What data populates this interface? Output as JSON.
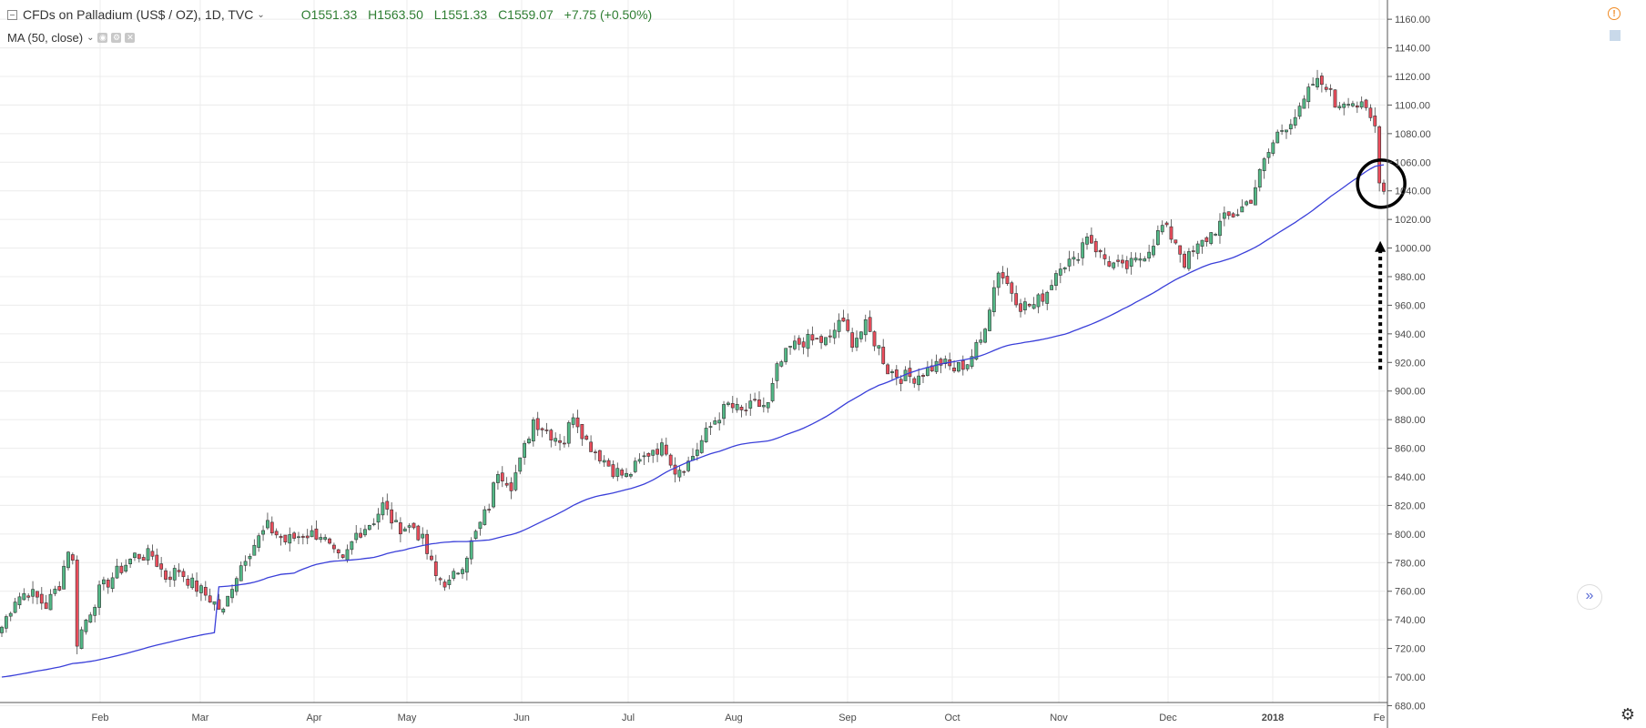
{
  "legend": {
    "symbol": "CFDs on Palladium (US$ / OZ), 1D, TVC",
    "open": "O1551.33",
    "high": "H1563.50",
    "low": "L1551.33",
    "close": "C1559.07",
    "change": "+7.75 (+0.50%)",
    "indicator": "MA (50, close)"
  },
  "colors": {
    "up": "#53b987",
    "down": "#eb4d5c",
    "ma": "#3a3fd9",
    "grid": "#ececec",
    "axis_text": "#4a4a4a",
    "annotation": "#000000"
  },
  "icons": [
    "collapse-box-icon",
    "alert-icon",
    "scale-icon",
    "go-to-latest-icon",
    "settings-gear-icon"
  ],
  "chart_data": {
    "type": "candlestick",
    "y_axis": {
      "ticks": [
        680,
        700,
        720,
        740,
        760,
        780,
        800,
        820,
        840,
        860,
        880,
        900,
        920,
        940,
        960,
        980,
        1000,
        1020,
        1040,
        1060,
        1080,
        1100,
        1120,
        1140,
        1160
      ],
      "range": [
        672,
        1162
      ],
      "position": "right"
    },
    "x_axis": {
      "labels": [
        "Feb",
        "Mar",
        "Apr",
        "May",
        "Jun",
        "Jul",
        "Aug",
        "Sep",
        "Oct",
        "Nov",
        "Dec",
        "2018",
        "Fe"
      ]
    },
    "grid": true,
    "anchors": [
      [
        0,
        735
      ],
      [
        3,
        755
      ],
      [
        6,
        760
      ],
      [
        10,
        750
      ],
      [
        13,
        765
      ],
      [
        15,
        790
      ],
      [
        16,
        780
      ],
      [
        17,
        725
      ],
      [
        19,
        740
      ],
      [
        22,
        760
      ],
      [
        25,
        770
      ],
      [
        30,
        785
      ],
      [
        34,
        785
      ],
      [
        37,
        770
      ],
      [
        40,
        775
      ],
      [
        43,
        765
      ],
      [
        47,
        755
      ],
      [
        50,
        745
      ],
      [
        52,
        765
      ],
      [
        55,
        785
      ],
      [
        60,
        805
      ],
      [
        64,
        795
      ],
      [
        68,
        800
      ],
      [
        72,
        800
      ],
      [
        75,
        785
      ],
      [
        77,
        780
      ],
      [
        80,
        800
      ],
      [
        84,
        810
      ],
      [
        86,
        820
      ],
      [
        89,
        805
      ],
      [
        93,
        805
      ],
      [
        95,
        795
      ],
      [
        98,
        770
      ],
      [
        101,
        765
      ],
      [
        104,
        780
      ],
      [
        107,
        800
      ],
      [
        110,
        820
      ],
      [
        112,
        845
      ],
      [
        115,
        835
      ],
      [
        117,
        850
      ],
      [
        120,
        880
      ],
      [
        124,
        870
      ],
      [
        127,
        865
      ],
      [
        129,
        885
      ],
      [
        132,
        865
      ],
      [
        135,
        855
      ],
      [
        138,
        845
      ],
      [
        141,
        840
      ],
      [
        144,
        850
      ],
      [
        147,
        860
      ],
      [
        150,
        860
      ],
      [
        152,
        845
      ],
      [
        155,
        850
      ],
      [
        158,
        865
      ],
      [
        161,
        880
      ],
      [
        164,
        890
      ],
      [
        167,
        885
      ],
      [
        170,
        890
      ],
      [
        173,
        890
      ],
      [
        175,
        915
      ],
      [
        178,
        930
      ],
      [
        181,
        935
      ],
      [
        184,
        935
      ],
      [
        187,
        935
      ],
      [
        189,
        950
      ],
      [
        192,
        935
      ],
      [
        195,
        945
      ],
      [
        198,
        930
      ],
      [
        200,
        915
      ],
      [
        203,
        910
      ],
      [
        206,
        910
      ],
      [
        209,
        915
      ],
      [
        212,
        920
      ],
      [
        215,
        915
      ],
      [
        218,
        920
      ],
      [
        221,
        935
      ],
      [
        223,
        960
      ],
      [
        225,
        985
      ],
      [
        228,
        970
      ],
      [
        230,
        960
      ],
      [
        233,
        960
      ],
      [
        236,
        970
      ],
      [
        239,
        990
      ],
      [
        242,
        990
      ],
      [
        245,
        1010
      ],
      [
        248,
        995
      ],
      [
        250,
        990
      ],
      [
        253,
        985
      ],
      [
        256,
        990
      ],
      [
        259,
        1000
      ],
      [
        262,
        1015
      ],
      [
        265,
        1005
      ],
      [
        267,
        990
      ],
      [
        270,
        1000
      ],
      [
        273,
        1010
      ],
      [
        276,
        1020
      ],
      [
        279,
        1025
      ],
      [
        282,
        1035
      ],
      [
        285,
        1060
      ],
      [
        288,
        1080
      ],
      [
        291,
        1090
      ],
      [
        293,
        1095
      ],
      [
        296,
        1115
      ],
      [
        299,
        1115
      ],
      [
        301,
        1100
      ],
      [
        304,
        1105
      ],
      [
        306,
        1100
      ],
      [
        308,
        1095
      ],
      [
        310,
        1085
      ],
      [
        311,
        1050
      ],
      [
        312,
        1040
      ]
    ],
    "candle_count": 313,
    "annotation": {
      "type": "circle-and-arrow",
      "target_candle": 311
    }
  }
}
